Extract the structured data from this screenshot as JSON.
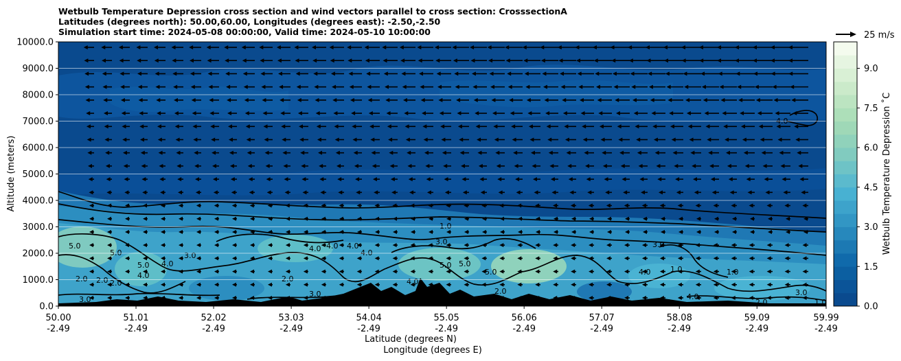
{
  "chart_data": {
    "type": "heatmap",
    "title": "Wetbulb Temperature Depression cross section and wind vectors parallel to cross section: CrosssectionA",
    "subtitle_lines": [
      "Latitudes (degrees north): 50.00,60.00, Longitudes (degrees east): -2.50,-2.50",
      "Simulation start time: 2024-05-08 00:00:00, Valid time: 2024-05-10 10:00:00"
    ],
    "xlabel_lines": [
      "Latitude (degrees N)",
      "Longitude (degrees E)"
    ],
    "ylabel": "Altitude (meters)",
    "x_ticks": [
      {
        "lat": "50.00",
        "lon": "-2.49"
      },
      {
        "lat": "51.01",
        "lon": "-2.49"
      },
      {
        "lat": "52.02",
        "lon": "-2.49"
      },
      {
        "lat": "53.03",
        "lon": "-2.49"
      },
      {
        "lat": "54.04",
        "lon": "-2.49"
      },
      {
        "lat": "55.05",
        "lon": "-2.49"
      },
      {
        "lat": "56.06",
        "lon": "-2.49"
      },
      {
        "lat": "57.07",
        "lon": "-2.49"
      },
      {
        "lat": "58.08",
        "lon": "-2.49"
      },
      {
        "lat": "59.09",
        "lon": "-2.49"
      },
      {
        "lat": "59.99",
        "lon": "-2.49"
      }
    ],
    "xlim": [
      50.0,
      59.99
    ],
    "y_ticks": [
      "0.0",
      "1000.0",
      "2000.0",
      "3000.0",
      "4000.0",
      "5000.0",
      "6000.0",
      "7000.0",
      "8000.0",
      "9000.0",
      "10000.0"
    ],
    "ylim": [
      0,
      10000
    ],
    "grid": "horizontal",
    "colorbar": {
      "label": "Wetbulb Temperature Depression ˚C",
      "ticks": [
        "0.0",
        "1.5",
        "3.0",
        "4.5",
        "6.0",
        "7.5",
        "9.0"
      ],
      "range": [
        0,
        10
      ],
      "colormap": "GnBu",
      "color_stops": [
        "#0a4a8e",
        "#0d66a8",
        "#2c8ec0",
        "#4ab3d3",
        "#7fcac0",
        "#a7dcb5",
        "#cfeccc",
        "#f4fbee"
      ]
    },
    "quiver_key": "25 m/s",
    "wind_direction": "southward (arrows pointing left)",
    "contour_labels": [
      "1.0",
      "2.0",
      "3.0",
      "4.0",
      "5.0"
    ],
    "terrain_color": "#000000"
  }
}
